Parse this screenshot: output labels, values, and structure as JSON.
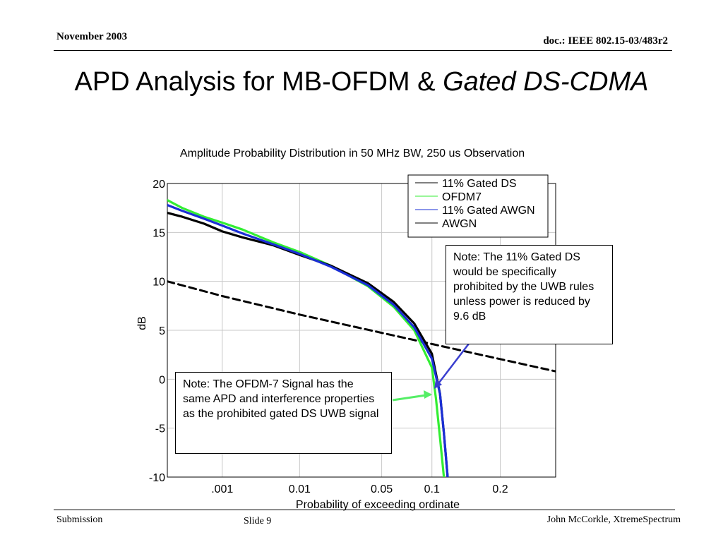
{
  "header": {
    "date": "November 2003",
    "doc": "doc.: IEEE 802.15-03/483r2"
  },
  "slide": {
    "title_plain": "APD Analysis for MB-OFDM & ",
    "title_italic": "Gated DS-CDMA"
  },
  "footer": {
    "left": "Submission",
    "slide": "Slide 9",
    "right": "John McCorkle, XtremeSpectrum"
  },
  "notes": {
    "gated": "Note: The 11% Gated DS would be specifically prohibited by the UWB rules unless power is reduced by 9.6 dB",
    "ofdm": "Note: The OFDM-7 Signal has the same APD and interference properties as the prohibited gated DS UWB signal"
  },
  "colors": {
    "gated_ds": "#000000",
    "ofdm7": "#33ee33",
    "gated_awgn": "#1a2fd6",
    "awgn": "#000000",
    "arrow_green": "#55ee66",
    "arrow_blue": "#3a3fcf"
  },
  "chart_data": {
    "type": "line",
    "title": "Amplitude Probability Distribution in 50 MHz BW, 250 us Observation",
    "xlabel": "Probability of exceeding ordinate",
    "ylabel": "dB",
    "x_scale": "rayleigh",
    "xlim": [
      0.0001,
      0.3
    ],
    "ylim": [
      -10,
      20
    ],
    "x_ticks": [
      0.001,
      0.01,
      0.05,
      0.1,
      0.2
    ],
    "x_tick_labels": [
      ".001",
      "0.01",
      "0.05",
      "0.1",
      "0.2"
    ],
    "y_ticks": [
      20,
      15,
      10,
      5,
      0,
      -5,
      -10
    ],
    "y_tick_labels": [
      "20",
      "15",
      "10",
      "5",
      "0",
      "-5",
      "-10"
    ],
    "grid": true,
    "legend_position": "top-right",
    "series": [
      {
        "name": "11% Gated DS",
        "color": "#000000",
        "style": "solid-thick",
        "x": [
          0.0001,
          0.0002,
          0.0005,
          0.001,
          0.002,
          0.005,
          0.01,
          0.02,
          0.04,
          0.06,
          0.08,
          0.1,
          0.11,
          0.115,
          0.12
        ],
        "y": [
          17.0,
          16.6,
          15.9,
          15.1,
          14.5,
          13.7,
          12.7,
          11.6,
          9.8,
          7.9,
          5.7,
          2.6,
          -1.5,
          -5.5,
          -10
        ]
      },
      {
        "name": "OFDM7",
        "color": "#33ee33",
        "style": "solid-thick",
        "x": [
          0.0001,
          0.0002,
          0.0005,
          0.001,
          0.002,
          0.005,
          0.01,
          0.02,
          0.04,
          0.06,
          0.08,
          0.1,
          0.105,
          0.11,
          0.115
        ],
        "y": [
          18.3,
          17.5,
          16.6,
          16.0,
          15.3,
          14.0,
          13.0,
          11.6,
          9.5,
          7.4,
          5.0,
          1.2,
          -2.0,
          -6.0,
          -10
        ]
      },
      {
        "name": "11% Gated AWGN",
        "color": "#1a2fd6",
        "style": "solid-thick",
        "x": [
          0.0001,
          0.0002,
          0.0005,
          0.001,
          0.002,
          0.005,
          0.01,
          0.02,
          0.04,
          0.06,
          0.08,
          0.1,
          0.11,
          0.115,
          0.12
        ],
        "y": [
          17.8,
          17.2,
          16.4,
          15.7,
          14.9,
          13.8,
          12.8,
          11.5,
          9.6,
          7.6,
          5.3,
          2.1,
          -1.5,
          -5.5,
          -10
        ]
      },
      {
        "name": "AWGN",
        "color": "#000000",
        "style": "dashed",
        "x": [
          0.0001,
          0.001,
          0.01,
          0.1,
          0.3
        ],
        "y": [
          10.0,
          8.5,
          6.6,
          3.6,
          0.8
        ]
      }
    ]
  }
}
